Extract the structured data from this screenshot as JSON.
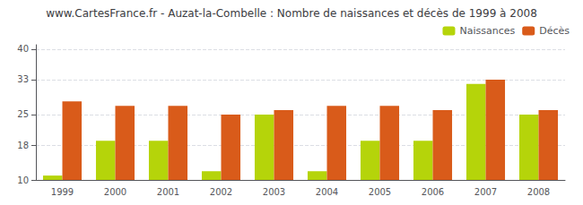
{
  "chart_data": {
    "type": "bar",
    "title": "www.CartesFrance.fr - Auzat-la-Combelle : Nombre de naissances et décès de 1999 à 2008",
    "categories": [
      "1999",
      "2000",
      "2001",
      "2002",
      "2003",
      "2004",
      "2005",
      "2006",
      "2007",
      "2008"
    ],
    "series": [
      {
        "name": "Naissances",
        "color": "#b5d40a",
        "values": [
          11,
          19,
          19,
          12,
          25,
          12,
          19,
          19,
          32,
          25
        ]
      },
      {
        "name": "Décès",
        "color": "#d95b1a",
        "values": [
          28,
          27,
          27,
          25,
          26,
          27,
          27,
          26,
          33,
          26
        ]
      }
    ],
    "ylim": [
      10,
      41
    ],
    "yticks": [
      10,
      18,
      25,
      33,
      40
    ],
    "grid": true,
    "legend": "upper right"
  }
}
